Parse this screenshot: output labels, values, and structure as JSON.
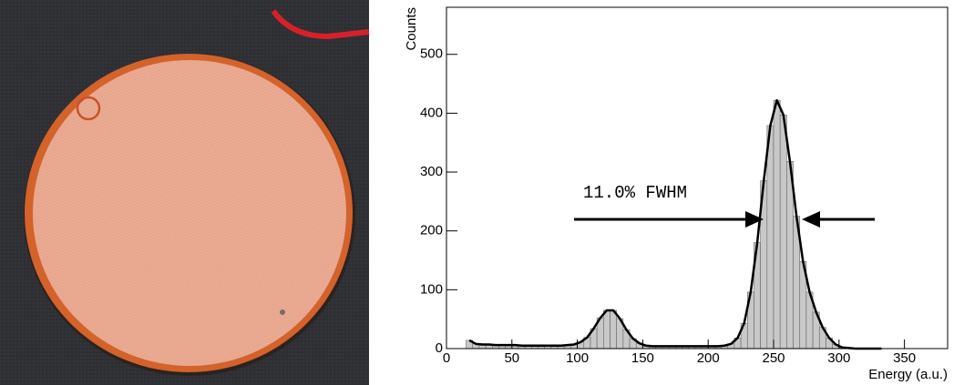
{
  "chart_data": {
    "type": "histogram",
    "xlabel": "Energy (a.u.)",
    "ylabel": "Counts",
    "annotation": "11.0% FWHM",
    "bins": [
      15,
      20,
      25,
      30,
      35,
      40,
      45,
      50,
      55,
      60,
      65,
      70,
      75,
      80,
      85,
      90,
      95,
      100,
      105,
      110,
      115,
      120,
      125,
      130,
      135,
      140,
      145,
      150,
      155,
      160,
      165,
      170,
      175,
      180,
      185,
      190,
      195,
      200,
      205,
      210,
      215,
      220,
      225,
      230,
      235,
      240,
      245,
      250,
      255,
      260,
      265,
      270,
      275,
      280,
      285,
      290,
      295,
      300,
      305,
      310,
      315,
      320,
      325,
      330,
      335
    ],
    "values": [
      14,
      8,
      7,
      7,
      6,
      6,
      6,
      6,
      5,
      5,
      5,
      5,
      5,
      5,
      5,
      6,
      7,
      11,
      19,
      34,
      52,
      65,
      65,
      51,
      32,
      17,
      9,
      5,
      4,
      4,
      4,
      4,
      4,
      4,
      4,
      4,
      4,
      4,
      4,
      5,
      8,
      18,
      43,
      96,
      180,
      285,
      379,
      422,
      397,
      318,
      225,
      148,
      96,
      62,
      36,
      18,
      7,
      2,
      1,
      0,
      0,
      0,
      0,
      0
    ],
    "color": "#c8c8c8",
    "xlim": [
      0,
      383
    ],
    "xticks": [
      0,
      50,
      100,
      150,
      200,
      250,
      300,
      350
    ],
    "ylim": [
      0,
      580
    ],
    "yticks": [
      0,
      100,
      200,
      300,
      400,
      500
    ]
  }
}
